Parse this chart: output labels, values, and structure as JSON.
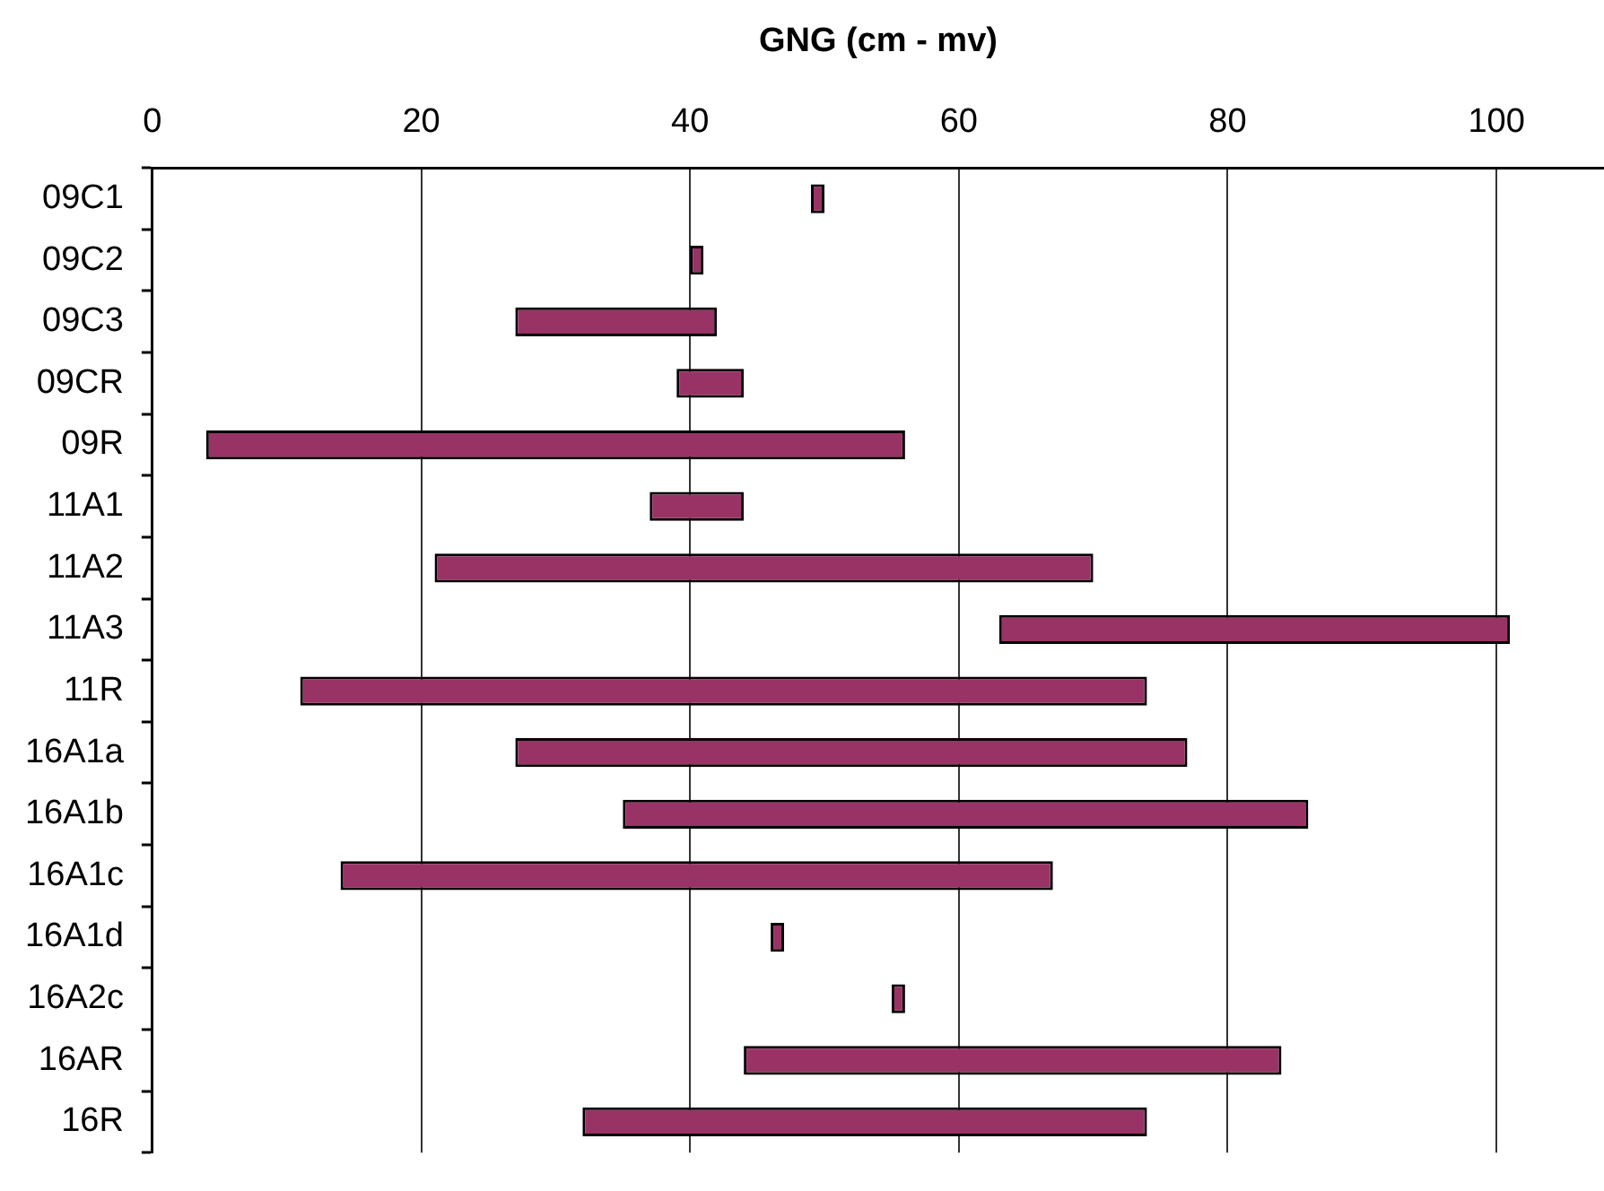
{
  "chart_data": {
    "type": "bar",
    "orientation": "horizontal",
    "xlabel": "GNG (cm - mv)",
    "categories": [
      "09C1",
      "09C2",
      "09C3",
      "09CR",
      "09R",
      "11A1",
      "11A2",
      "11A3",
      "11R",
      "16A1a",
      "16A1b",
      "16A1c",
      "16A1d",
      "16A2c",
      "16AR",
      "16R"
    ],
    "base": [
      49,
      40,
      27,
      39,
      4,
      37,
      21,
      63,
      11,
      27,
      35,
      14,
      46,
      55,
      44,
      32
    ],
    "values": [
      1,
      1,
      15,
      5,
      52,
      7,
      49,
      38,
      63,
      50,
      51,
      53,
      1,
      1,
      40,
      42
    ],
    "color": "#993366",
    "xlim": [
      0,
      108
    ],
    "xticks": [
      0,
      20,
      40,
      60,
      80,
      100
    ],
    "grid": "x",
    "legend": false
  }
}
